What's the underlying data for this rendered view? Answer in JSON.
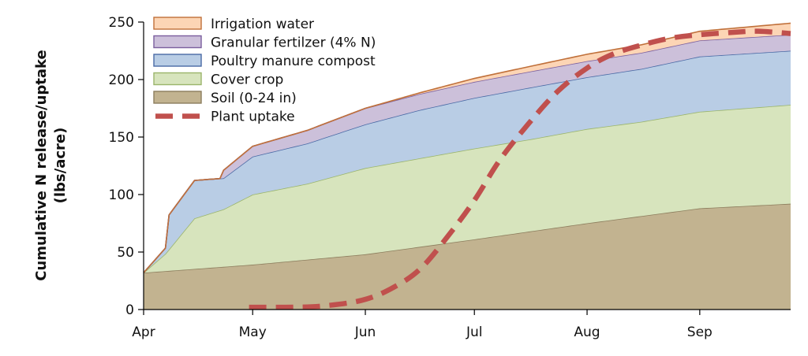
{
  "chart_data": {
    "type": "area",
    "stacked": true,
    "ylabel_line1": "Cumulative N release/uptake",
    "ylabel_line2": "(lbs/acre)",
    "ylim": [
      0,
      250
    ],
    "yticks": [
      0,
      50,
      100,
      150,
      200,
      250
    ],
    "xlim": [
      "2022-04-01",
      "2022-09-26"
    ],
    "xticks": [
      {
        "label": "Apr",
        "date": "2022-04-01"
      },
      {
        "label": "May",
        "date": "2022-05-01"
      },
      {
        "label": "Jun",
        "date": "2022-06-01"
      },
      {
        "label": "Jul",
        "date": "2022-07-01"
      },
      {
        "label": "Aug",
        "date": "2022-08-01"
      },
      {
        "label": "Sep",
        "date": "2022-09-01"
      }
    ],
    "legend_position": "top-left",
    "series": [
      {
        "name": "Soil (0-24 in)",
        "fill": "#c2b390",
        "stroke": "#8c7d5d",
        "points": [
          [
            "2022-04-01",
            32
          ],
          [
            "2022-05-01",
            39
          ],
          [
            "2022-06-01",
            48
          ],
          [
            "2022-07-01",
            61
          ],
          [
            "2022-08-01",
            75
          ],
          [
            "2022-09-01",
            88
          ],
          [
            "2022-09-26",
            92
          ]
        ]
      },
      {
        "name": "Cover crop",
        "fill": "#d7e4bd",
        "stroke": "#9bb56b",
        "points": [
          [
            "2022-04-01",
            0
          ],
          [
            "2022-04-07",
            15
          ],
          [
            "2022-04-15",
            44
          ],
          [
            "2022-04-23",
            50
          ],
          [
            "2022-05-01",
            61
          ],
          [
            "2022-05-16",
            66
          ],
          [
            "2022-06-01",
            75
          ],
          [
            "2022-06-16",
            77
          ],
          [
            "2022-07-01",
            79
          ],
          [
            "2022-07-16",
            80
          ],
          [
            "2022-08-01",
            82
          ],
          [
            "2022-08-16",
            82
          ],
          [
            "2022-09-01",
            84
          ],
          [
            "2022-09-26",
            86
          ]
        ]
      },
      {
        "name": "Poultry manure compost",
        "fill": "#b9cde5",
        "stroke": "#4a6aa5",
        "points": [
          [
            "2022-04-01",
            0
          ],
          [
            "2022-04-07",
            5
          ],
          [
            "2022-04-08",
            30
          ],
          [
            "2022-04-15",
            33
          ],
          [
            "2022-04-23",
            27
          ],
          [
            "2022-05-01",
            33
          ],
          [
            "2022-05-16",
            35
          ],
          [
            "2022-06-01",
            38
          ],
          [
            "2022-06-16",
            42
          ],
          [
            "2022-07-01",
            44
          ],
          [
            "2022-07-16",
            45
          ],
          [
            "2022-08-01",
            45
          ],
          [
            "2022-08-16",
            46
          ],
          [
            "2022-09-01",
            48
          ],
          [
            "2022-09-26",
            47
          ]
        ]
      },
      {
        "name": "Granular fertilzer (4% N)",
        "fill": "#ccc0da",
        "stroke": "#7b5f9e",
        "points": [
          [
            "2022-04-01",
            0
          ],
          [
            "2022-04-22",
            0
          ],
          [
            "2022-04-23",
            7
          ],
          [
            "2022-05-01",
            9
          ],
          [
            "2022-06-01",
            14
          ],
          [
            "2022-07-01",
            14
          ],
          [
            "2022-08-01",
            14
          ],
          [
            "2022-09-01",
            14
          ],
          [
            "2022-09-26",
            14
          ]
        ]
      },
      {
        "name": "Irrigation water",
        "fill": "#fcd5b5",
        "stroke": "#c0703a",
        "points": [
          [
            "2022-04-01",
            0
          ],
          [
            "2022-06-01",
            0
          ],
          [
            "2022-06-16",
            1
          ],
          [
            "2022-07-01",
            3
          ],
          [
            "2022-08-01",
            6
          ],
          [
            "2022-09-01",
            8
          ],
          [
            "2022-09-26",
            10
          ]
        ]
      }
    ],
    "uptake": {
      "name": "Plant uptake",
      "stroke": "#c0504d",
      "points": [
        [
          "2022-04-30",
          2
        ],
        [
          "2022-05-10",
          2
        ],
        [
          "2022-05-20",
          3
        ],
        [
          "2022-05-31",
          8
        ],
        [
          "2022-06-08",
          18
        ],
        [
          "2022-06-16",
          35
        ],
        [
          "2022-06-24",
          65
        ],
        [
          "2022-07-01",
          95
        ],
        [
          "2022-07-08",
          130
        ],
        [
          "2022-07-16",
          162
        ],
        [
          "2022-07-24",
          190
        ],
        [
          "2022-08-01",
          210
        ],
        [
          "2022-08-08",
          222
        ],
        [
          "2022-08-16",
          230
        ],
        [
          "2022-08-24",
          236
        ],
        [
          "2022-09-01",
          239
        ],
        [
          "2022-09-10",
          241
        ],
        [
          "2022-09-17",
          242
        ],
        [
          "2022-09-26",
          240
        ]
      ]
    }
  }
}
